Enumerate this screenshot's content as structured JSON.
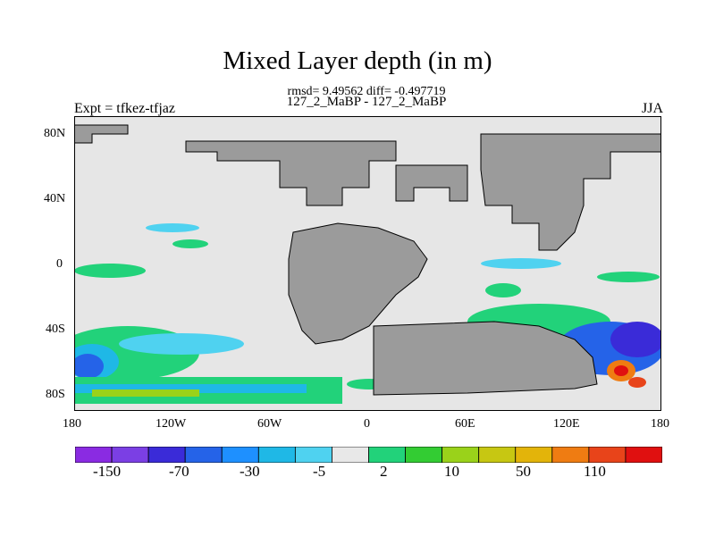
{
  "title": "Mixed Layer depth (in m)",
  "stats": "rmsd= 9.49562 diff= -0.497719",
  "case_label": "127_2_MaBP - 127_2_MaBP",
  "left_label": "Expt = tfkez-tfjaz",
  "right_label": "JJA",
  "lat_ticks": [
    "80N",
    "40N",
    "0",
    "40S",
    "80S"
  ],
  "lon_ticks": [
    "180",
    "120W",
    "60W",
    "0",
    "60E",
    "120E",
    "180"
  ],
  "colorbar": {
    "colors": [
      "#8a2be2",
      "#7b3fe4",
      "#3a2bd8",
      "#2563e8",
      "#1e90ff",
      "#1fb8e6",
      "#4fd2f0",
      "#e8e8e8",
      "#22d27a",
      "#33cc33",
      "#9ad21a",
      "#c7c712",
      "#e3b40a",
      "#ef7c12",
      "#e8441a",
      "#e01010"
    ],
    "labels": [
      "-150",
      "-70",
      "-30",
      "-5",
      "2",
      "10",
      "50",
      "110"
    ]
  },
  "map_colors": {
    "land": "#9b9b9b",
    "ocean": "#e6e6e6"
  }
}
